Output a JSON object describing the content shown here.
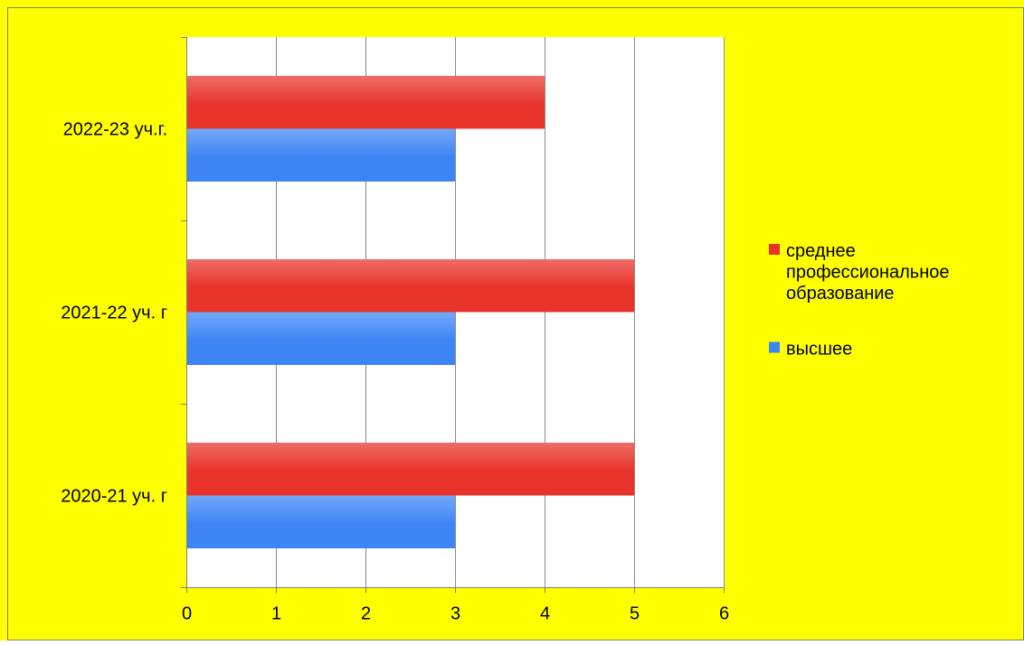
{
  "colors": {
    "page_background": "#ffff00",
    "plot_background": "#ffffff",
    "grid": "#8c8c8c",
    "frame": "#7f7f7f"
  },
  "chart_data": {
    "type": "bar",
    "orientation": "horizontal",
    "categories": [
      "2020-21 уч. г",
      "2021-22 уч. г",
      "2022-23 уч.г."
    ],
    "series": [
      {
        "name": "высшее",
        "color": "#3d85f5",
        "values": [
          3,
          3,
          3
        ]
      },
      {
        "name": "среднее профессиональное образование",
        "name_lines": [
          "среднее",
          "профессиональное",
          "образование"
        ],
        "color": "#e8332a",
        "values": [
          5,
          5,
          4
        ]
      }
    ],
    "xlim": [
      0,
      6
    ],
    "x_ticks": [
      "0",
      "1",
      "2",
      "3",
      "4",
      "5",
      "6"
    ],
    "grid": true,
    "legend_position": "right",
    "title": "",
    "xlabel": "",
    "ylabel": ""
  }
}
